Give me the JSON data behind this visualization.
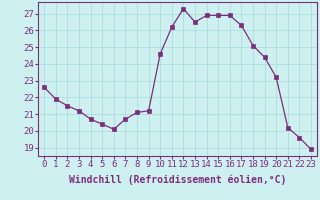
{
  "x": [
    0,
    1,
    2,
    3,
    4,
    5,
    6,
    7,
    8,
    9,
    10,
    11,
    12,
    13,
    14,
    15,
    16,
    17,
    18,
    19,
    20,
    21,
    22,
    23
  ],
  "y": [
    22.6,
    21.9,
    21.5,
    21.2,
    20.7,
    20.4,
    20.1,
    20.7,
    21.1,
    21.2,
    24.6,
    26.2,
    27.3,
    26.5,
    26.9,
    26.9,
    26.9,
    26.3,
    25.1,
    24.4,
    23.2,
    20.2,
    19.6,
    18.9
  ],
  "line_color": "#7b2f7b",
  "marker": "s",
  "marker_size": 2.5,
  "bg_color": "#cff0f0",
  "grid_color": "#aadddd",
  "xlabel": "Windchill (Refroidissement éolien,°C)",
  "xlabel_fontsize": 7,
  "yticks": [
    19,
    20,
    21,
    22,
    23,
    24,
    25,
    26,
    27
  ],
  "xticks": [
    0,
    1,
    2,
    3,
    4,
    5,
    6,
    7,
    8,
    9,
    10,
    11,
    12,
    13,
    14,
    15,
    16,
    17,
    18,
    19,
    20,
    21,
    22,
    23
  ],
  "ylim": [
    18.5,
    27.7
  ],
  "xlim": [
    -0.5,
    23.5
  ],
  "tick_fontsize": 6.5,
  "tick_color": "#7b2f7b",
  "spine_color": "#7b2f7b",
  "fig_width": 3.2,
  "fig_height": 2.0,
  "dpi": 100
}
